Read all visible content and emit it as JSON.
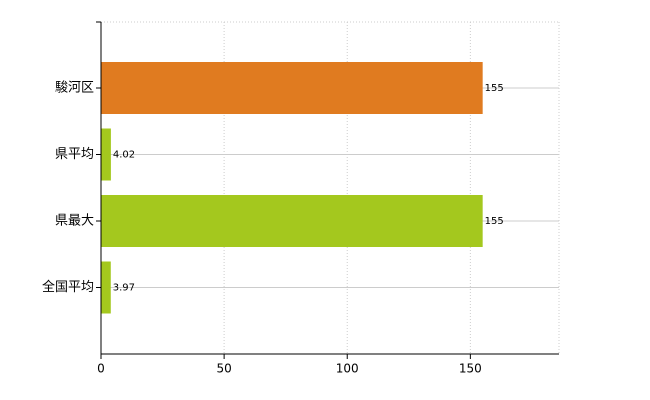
{
  "chart_data": {
    "type": "bar",
    "orientation": "horizontal",
    "categories": [
      "駿河区",
      "県平均",
      "県最大",
      "全国平均"
    ],
    "values": [
      155,
      4.02,
      155,
      3.97
    ],
    "colors": [
      "#e07b20",
      "#a4c81e",
      "#a4c81e",
      "#a4c81e"
    ],
    "xlim": [
      0,
      186
    ],
    "xticks": [
      0,
      50,
      100,
      150
    ],
    "grid": true
  }
}
